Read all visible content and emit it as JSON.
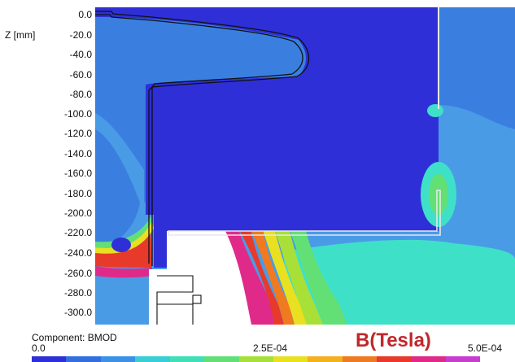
{
  "axis": {
    "unit_label": "Z [mm]",
    "ticks": [
      "0.0",
      "-20.0",
      "-40.0",
      "-60.0",
      "-80.0",
      "-100.0",
      "-120.0",
      "-140.0",
      "-160.0",
      "-180.0",
      "-200.0",
      "-220.0",
      "-240.0",
      "-260.0",
      "-280.0",
      "-300.0"
    ]
  },
  "legend": {
    "component_label": "Component: BMOD",
    "min_label": "0.0",
    "mid_label": "2.5E-04",
    "max_label": "5.0E-04",
    "unit_label": "B(Tesla)",
    "colormap": [
      "#2f2fd8",
      "#2f6fe0",
      "#3a92e8",
      "#36cfd6",
      "#3fe0b8",
      "#62e075",
      "#a8e038",
      "#e8e020",
      "#f5b020",
      "#f07a20",
      "#e83a2a",
      "#e02a8a",
      "#c83cd0",
      "#ffffff"
    ]
  },
  "colors": {
    "deep_blue": "#2f2fd8",
    "mid_blue": "#3a7fe0",
    "light_blue": "#4a9be6",
    "cyan": "#3fe0c8"
  }
}
